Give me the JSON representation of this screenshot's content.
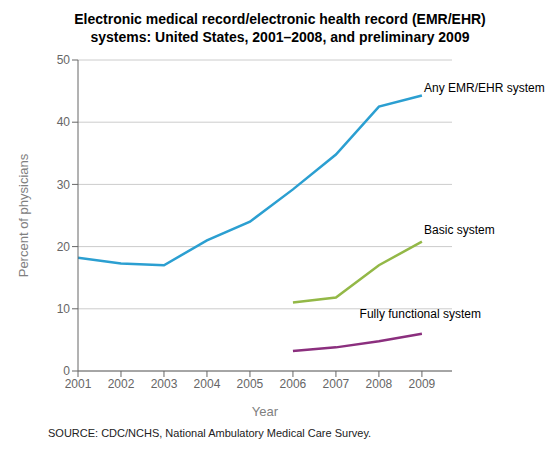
{
  "chart_data": {
    "type": "line",
    "title": "Electronic medical record/electronic health record (EMR/EHR)\n    systems: United States, 2001–2008, and preliminary 2009",
    "x_label": "Year",
    "y_label": "Percent of physicians",
    "source": "SOURCE: CDC/NCHS, National Ambulatory Medical Care Survey.",
    "x": [
      2001,
      2002,
      2003,
      2004,
      2005,
      2006,
      2007,
      2008,
      2009
    ],
    "series": [
      {
        "color": "#2B9FD1",
        "values": [
          18.2,
          17.3,
          17.0,
          21.0,
          24.0,
          29.2,
          34.8,
          42.5,
          44.3
        ]
      },
      {
        "color": "#93B847",
        "values": [
          null,
          null,
          null,
          null,
          null,
          11.0,
          11.8,
          17.0,
          20.8
        ]
      },
      {
        "color": "#8B2F7E",
        "values": [
          null,
          null,
          null,
          null,
          null,
          3.2,
          3.8,
          4.8,
          6.0
        ]
      }
    ],
    "xlim": [
      2001,
      2009.7
    ],
    "xticks": [
      2001,
      2002,
      2003,
      2004,
      2005,
      2006,
      2007,
      2008,
      2009
    ],
    "ylim": [
      0,
      50
    ],
    "yticks": [
      0,
      10,
      20,
      30,
      40,
      50
    ],
    "grid": true,
    "annotations": [
      {
        "text": "Any EMR/EHR system",
        "x": 2009.05,
        "y": 44.8
      },
      {
        "text": "Basic system",
        "x": 2009.05,
        "y": 22.0
      },
      {
        "text": "Fully functional system",
        "x": 2007.55,
        "y": 8.5
      }
    ]
  }
}
